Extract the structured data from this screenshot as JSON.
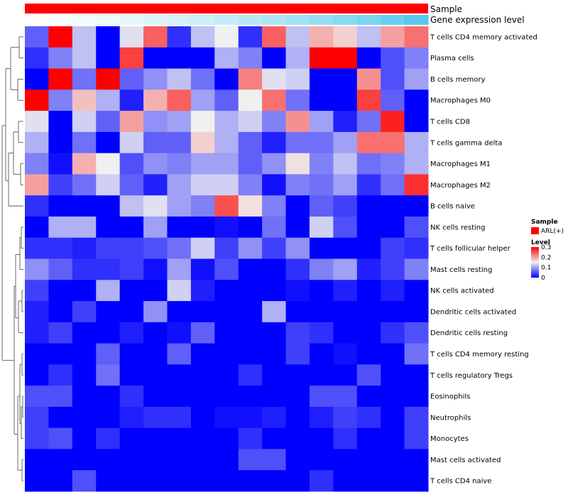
{
  "chart_data": {
    "type": "heatmap",
    "annotation_rows": [
      "Sample",
      "Gene expression level"
    ],
    "annotation_colors": {
      "sample": "#ff0000",
      "expression_low": "#ffffff",
      "expression_high": "#55c8ee"
    },
    "rows": [
      "T cells CD4 memory activated",
      "Plasma cells",
      "B cells memory",
      "Macrophages M0",
      "T cells CD8",
      "T cells gamma delta",
      "Macrophages M1",
      "Macrophages M2",
      "B cells naive",
      "NK cells resting",
      "T cells follicular helper",
      "Mast cells resting",
      "NK cells activated",
      "Dendritic cells activated",
      "Dendritic cells resting",
      "T cells CD4 memory resting",
      "T cells regulatory  Tregs",
      "Eosinophils",
      "Neutrophils",
      "Monocytes",
      "Mast cells activated",
      "T cells CD4 naive"
    ],
    "values": [
      [
        0.06,
        0.3,
        0.12,
        0.0,
        0.14,
        0.24,
        0.03,
        0.12,
        0.15,
        0.03,
        0.24,
        0.12,
        0.19,
        0.17,
        0.12,
        0.2,
        0.23
      ],
      [
        0.03,
        0.08,
        0.12,
        0.0,
        0.26,
        0.0,
        0.0,
        0.0,
        0.11,
        0.08,
        0.0,
        0.11,
        0.3,
        0.3,
        0.0,
        0.05,
        0.08
      ],
      [
        0.0,
        0.3,
        0.07,
        0.3,
        0.06,
        0.09,
        0.12,
        0.07,
        0.0,
        0.22,
        0.14,
        0.13,
        0.0,
        0.0,
        0.21,
        0.05,
        0.1
      ],
      [
        0.3,
        0.08,
        0.18,
        0.11,
        0.02,
        0.19,
        0.24,
        0.1,
        0.06,
        0.15,
        0.23,
        0.07,
        0.0,
        0.0,
        0.26,
        0.06,
        0.0
      ],
      [
        0.14,
        0.0,
        0.13,
        0.06,
        0.2,
        0.09,
        0.1,
        0.15,
        0.11,
        0.13,
        0.08,
        0.21,
        0.1,
        0.02,
        0.07,
        0.28,
        0.0
      ],
      [
        0.11,
        0.0,
        0.07,
        0.0,
        0.13,
        0.06,
        0.06,
        0.17,
        0.11,
        0.06,
        0.02,
        0.07,
        0.07,
        0.1,
        0.23,
        0.23,
        0.11
      ],
      [
        0.08,
        0.01,
        0.19,
        0.15,
        0.05,
        0.09,
        0.08,
        0.1,
        0.1,
        0.06,
        0.09,
        0.16,
        0.08,
        0.12,
        0.07,
        0.08,
        0.11
      ],
      [
        0.2,
        0.04,
        0.07,
        0.13,
        0.06,
        0.02,
        0.1,
        0.13,
        0.13,
        0.08,
        0.01,
        0.08,
        0.07,
        0.1,
        0.03,
        0.07,
        0.27
      ],
      [
        0.03,
        0.0,
        0.0,
        0.0,
        0.12,
        0.14,
        0.1,
        0.08,
        0.25,
        0.16,
        0.08,
        0.0,
        0.06,
        0.04,
        0.0,
        0.0,
        0.0
      ],
      [
        0.0,
        0.11,
        0.11,
        0.0,
        0.0,
        0.1,
        0.0,
        0.0,
        0.01,
        0.0,
        0.07,
        0.0,
        0.13,
        0.05,
        0.0,
        0.0,
        0.05
      ],
      [
        0.03,
        0.03,
        0.02,
        0.04,
        0.04,
        0.05,
        0.07,
        0.13,
        0.04,
        0.09,
        0.04,
        0.09,
        0.0,
        0.0,
        0.0,
        0.04,
        0.03
      ],
      [
        0.09,
        0.06,
        0.03,
        0.03,
        0.04,
        0.01,
        0.1,
        0.01,
        0.05,
        0.0,
        0.0,
        0.03,
        0.08,
        0.1,
        0.02,
        0.04,
        0.08
      ],
      [
        0.04,
        0.0,
        0.0,
        0.11,
        0.0,
        0.0,
        0.13,
        0.02,
        0.0,
        0.0,
        0.0,
        0.01,
        0.0,
        0.02,
        0.0,
        0.02,
        0.0
      ],
      [
        0.02,
        0.0,
        0.04,
        0.0,
        0.0,
        0.09,
        0.0,
        0.0,
        0.0,
        0.0,
        0.11,
        0.0,
        0.0,
        0.0,
        0.0,
        0.0,
        0.0
      ],
      [
        0.02,
        0.04,
        0.0,
        0.0,
        0.02,
        0.0,
        0.01,
        0.06,
        0.0,
        0.0,
        0.0,
        0.04,
        0.03,
        0.0,
        0.0,
        0.03,
        0.05
      ],
      [
        0.0,
        0.0,
        0.0,
        0.06,
        0.0,
        0.0,
        0.06,
        0.0,
        0.0,
        0.0,
        0.0,
        0.04,
        0.0,
        0.01,
        0.0,
        0.0,
        0.07
      ],
      [
        0.0,
        0.03,
        0.0,
        0.07,
        0.0,
        0.0,
        0.0,
        0.0,
        0.0,
        0.03,
        0.0,
        0.0,
        0.0,
        0.0,
        0.05,
        0.0,
        0.0
      ],
      [
        0.05,
        0.05,
        0.0,
        0.0,
        0.03,
        0.0,
        0.0,
        0.0,
        0.0,
        0.0,
        0.0,
        0.0,
        0.05,
        0.05,
        0.0,
        0.0,
        0.0
      ],
      [
        0.04,
        0.0,
        0.0,
        0.0,
        0.02,
        0.03,
        0.03,
        0.0,
        0.01,
        0.01,
        0.02,
        0.0,
        0.02,
        0.04,
        0.03,
        0.0,
        0.04
      ],
      [
        0.04,
        0.05,
        0.0,
        0.03,
        0.0,
        0.0,
        0.0,
        0.0,
        0.0,
        0.03,
        0.0,
        0.0,
        0.0,
        0.03,
        0.0,
        0.0,
        0.04
      ],
      [
        0.0,
        0.0,
        0.0,
        0.0,
        0.0,
        0.0,
        0.0,
        0.0,
        0.0,
        0.05,
        0.05,
        0.0,
        0.0,
        0.0,
        0.0,
        0.0,
        0.0
      ],
      [
        0.0,
        0.0,
        0.05,
        0.0,
        0.0,
        0.0,
        0.0,
        0.0,
        0.0,
        0.0,
        0.0,
        0.0,
        0.03,
        0.0,
        0.0,
        0.0,
        0.0
      ]
    ],
    "expression_levels": [
      0.02,
      0.05,
      0.08,
      0.11,
      0.15,
      0.2,
      0.25,
      0.3,
      0.35,
      0.42,
      0.48,
      0.55,
      0.62,
      0.7,
      0.78,
      0.88,
      1.0
    ],
    "legend": {
      "sample_title": "Sample",
      "sample_label": "ARL(+)",
      "level_title": "Level",
      "level_ticks": [
        0.3,
        0.2,
        0.1,
        0
      ],
      "range": [
        0,
        0.3
      ]
    },
    "color_scale": {
      "low": "#0000ff",
      "mid": "#f0f0f0",
      "high": "#ff0000",
      "mid_value": 0.15
    }
  }
}
